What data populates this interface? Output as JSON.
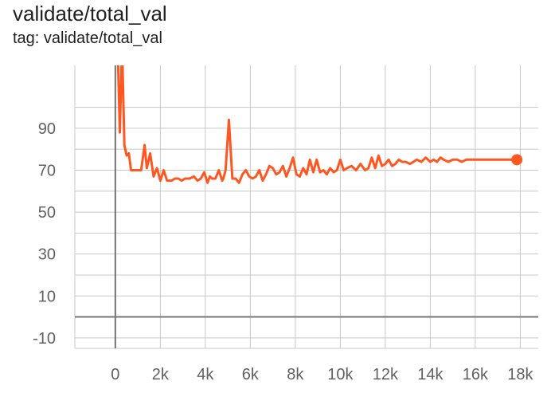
{
  "card": {
    "title": "validate/total_val",
    "tag_line": "tag: validate/total_val"
  },
  "chart_data": {
    "type": "line",
    "title": "validate/total_val",
    "subtitle": "tag: validate/total_val",
    "xlabel": "",
    "ylabel": "",
    "xlim": [
      -1800,
      18800
    ],
    "ylim": [
      -15,
      120
    ],
    "x_ticks": [
      {
        "value": 0,
        "label": "0"
      },
      {
        "value": 2000,
        "label": "2k"
      },
      {
        "value": 4000,
        "label": "4k"
      },
      {
        "value": 6000,
        "label": "6k"
      },
      {
        "value": 8000,
        "label": "8k"
      },
      {
        "value": 10000,
        "label": "10k"
      },
      {
        "value": 12000,
        "label": "12k"
      },
      {
        "value": 14000,
        "label": "14k"
      },
      {
        "value": 16000,
        "label": "16k"
      },
      {
        "value": 18000,
        "label": "18k"
      }
    ],
    "y_ticks": [
      {
        "value": -10,
        "label": "-10"
      },
      {
        "value": 10,
        "label": "10"
      },
      {
        "value": 30,
        "label": "30"
      },
      {
        "value": 50,
        "label": "50"
      },
      {
        "value": 70,
        "label": "70"
      },
      {
        "value": 90,
        "label": "90"
      }
    ],
    "grid": true,
    "colors": {
      "series": "#ff5722",
      "grid": "#c8c8c8",
      "zero_axis": "#757575"
    },
    "series": [
      {
        "name": "",
        "x": [
          100,
          200,
          300,
          400,
          500,
          600,
          700,
          800,
          900,
          1000,
          1150,
          1300,
          1400,
          1550,
          1700,
          1850,
          2000,
          2150,
          2300,
          2400,
          2500,
          2650,
          2800,
          2950,
          3100,
          3300,
          3500,
          3650,
          3800,
          3950,
          4100,
          4200,
          4300,
          4450,
          4600,
          4750,
          4800,
          4900,
          5050,
          5200,
          5350,
          5500,
          5650,
          5800,
          5950,
          6100,
          6250,
          6400,
          6550,
          6700,
          6850,
          7000,
          7150,
          7300,
          7450,
          7600,
          7750,
          7900,
          8050,
          8200,
          8350,
          8500,
          8650,
          8800,
          8950,
          9100,
          9250,
          9400,
          9550,
          9700,
          9850,
          10000,
          10150,
          10300,
          10500,
          10700,
          10900,
          11100,
          11250,
          11400,
          11550,
          11700,
          11850,
          12000,
          12150,
          12300,
          12450,
          12600,
          12750,
          12900,
          13100,
          13250,
          13400,
          13600,
          13800,
          14000,
          14150,
          14300,
          14450,
          14600,
          14800,
          15000,
          15200,
          15400,
          15600,
          15800,
          16000,
          16200,
          16400,
          16600,
          16800,
          17000,
          17200,
          17400,
          17600,
          17850
        ],
        "y": [
          130,
          88,
          130,
          82,
          77,
          78,
          70,
          70,
          70,
          70,
          70,
          82,
          71,
          78,
          67,
          71,
          65,
          70,
          65,
          65,
          65,
          66,
          66,
          65,
          66,
          66,
          67,
          65,
          66,
          69,
          64,
          67,
          66,
          66,
          70,
          65,
          66,
          70,
          94,
          66,
          66,
          64,
          68,
          70,
          67,
          66,
          67,
          70,
          65,
          68,
          72,
          71,
          68,
          69,
          72,
          67,
          71,
          76,
          68,
          67,
          71,
          68,
          75,
          69,
          75,
          69,
          70,
          68,
          71,
          69,
          70,
          75,
          70,
          71,
          72,
          70,
          73,
          70,
          71,
          76,
          71,
          77,
          72,
          73,
          75,
          72,
          73,
          75,
          74,
          74,
          73,
          74,
          75,
          74,
          76,
          74,
          75,
          74,
          76,
          75,
          74,
          75,
          75,
          74,
          75,
          75,
          75,
          75,
          75,
          75,
          75,
          75,
          75,
          75,
          75,
          75
        ]
      }
    ]
  }
}
